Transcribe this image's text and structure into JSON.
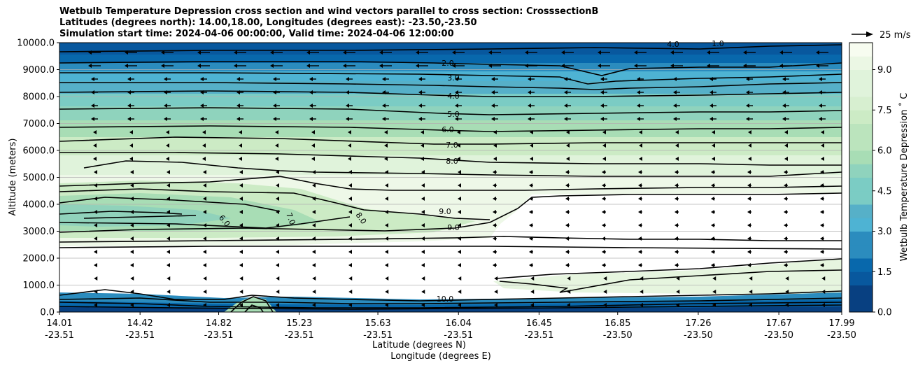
{
  "title_lines": [
    "Wetbulb Temperature Depression cross section and wind vectors parallel to cross section: CrosssectionB",
    "Latitudes (degrees north): 14.00,18.00, Longitudes (degrees east): -23.50,-23.50",
    "Simulation start time: 2024-04-06 00:00:00, Valid time: 2024-04-06 12:00:00"
  ],
  "chart_data": {
    "type": "contour",
    "ylabel": "Altitude (meters)",
    "xlabel_lat": "Latitude (degrees N)",
    "xlabel_lon": "Longitude (degrees E)",
    "ylim": [
      0,
      10000
    ],
    "grid": "horizontal",
    "y_ticks": [
      "0.0",
      "1000.0",
      "2000.0",
      "3000.0",
      "4000.0",
      "5000.0",
      "6000.0",
      "7000.0",
      "8000.0",
      "9000.0",
      "10000.0"
    ],
    "x_ticks": [
      {
        "lat": "14.01",
        "lon": "-23.51"
      },
      {
        "lat": "14.42",
        "lon": "-23.51"
      },
      {
        "lat": "14.82",
        "lon": "-23.51"
      },
      {
        "lat": "15.23",
        "lon": "-23.51"
      },
      {
        "lat": "15.63",
        "lon": "-23.51"
      },
      {
        "lat": "16.04",
        "lon": "-23.51"
      },
      {
        "lat": "16.45",
        "lon": "-23.51"
      },
      {
        "lat": "16.85",
        "lon": "-23.50"
      },
      {
        "lat": "17.26",
        "lon": "-23.50"
      },
      {
        "lat": "17.67",
        "lon": "-23.50"
      },
      {
        "lat": "17.99",
        "lon": "-23.50"
      }
    ],
    "colorbar": {
      "label": "Wetbulb Temperature Depression $^\\circ$C",
      "label_display": "Wetbulb Temperature Depression ˚ C",
      "range": [
        0,
        10
      ],
      "ticks": [
        "0.0",
        "1.5",
        "3.0",
        "4.5",
        "6.0",
        "7.5",
        "9.0"
      ],
      "colors": [
        "#084081",
        "#0868ac",
        "#2b8cbe",
        "#4eb3d3",
        "#7bccc4",
        "#a8ddb5",
        "#ccebc5",
        "#e0f3db",
        "#f7fcf0"
      ]
    },
    "contour_labels": [
      "2.0",
      "3.0",
      "4.0",
      "5.0",
      "6.0",
      "7.0",
      "8.0",
      "9.0",
      "6.0",
      "7.0",
      "8.0",
      "9.0",
      "4.0",
      "1.0",
      "10.0"
    ],
    "quiver_key": {
      "label": "25 m/s",
      "speed": 25
    }
  }
}
